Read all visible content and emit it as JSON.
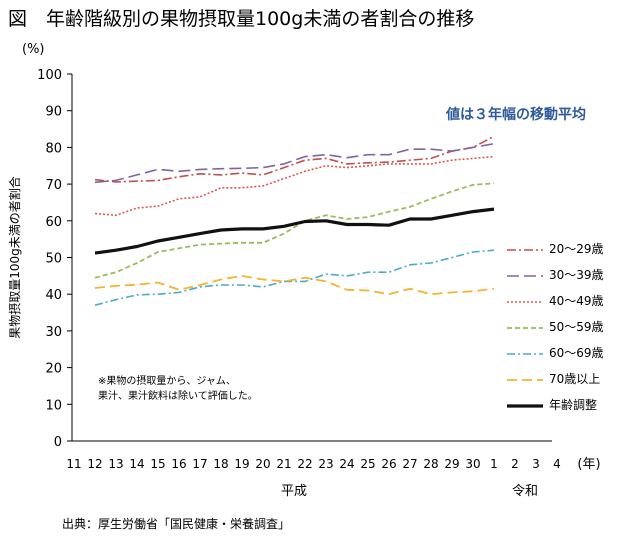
{
  "title": "図　年齢階級別の果物摂取量100g未満の者割合の推移",
  "unit_label": "(%)",
  "annotation": "値は３年幅の移動平均",
  "note_lines": [
    "※果物の摂取量から、ジャム、",
    "果汁、果汁飲料は除いて評価した。"
  ],
  "source": "出典：厚生労働省「国民健康・栄養調査」",
  "chart_data": {
    "type": "line",
    "ylabel": "果物摂取量100g未満の者割合",
    "xlabel": "(年)",
    "ylim": [
      0,
      100
    ],
    "yticks": [
      0,
      10,
      20,
      30,
      40,
      50,
      60,
      70,
      80,
      90,
      100
    ],
    "x_ticks": [
      "11",
      "12",
      "13",
      "14",
      "15",
      "16",
      "17",
      "18",
      "19",
      "20",
      "21",
      "22",
      "23",
      "24",
      "25",
      "26",
      "27",
      "28",
      "29",
      "30",
      "1",
      "2",
      "3",
      "4"
    ],
    "era_labels": [
      {
        "label": "平成",
        "under": "21"
      },
      {
        "label": "令和",
        "under": "2"
      }
    ],
    "x": [
      "12",
      "13",
      "14",
      "15",
      "16",
      "17",
      "18",
      "19",
      "20",
      "21",
      "22",
      "23",
      "24",
      "25",
      "26",
      "27",
      "28",
      "29",
      "30",
      "1"
    ],
    "series": [
      {
        "name": "20～29歳",
        "color": "#c0504d",
        "dash": "9,3,2,3",
        "width": 1.6,
        "values": [
          71.2,
          70.6,
          70.8,
          71.0,
          72.0,
          72.8,
          72.5,
          73.0,
          72.5,
          74.5,
          76.5,
          77.0,
          75.5,
          75.8,
          76.0,
          76.5,
          77.0,
          79.0,
          80.0,
          83.0
        ]
      },
      {
        "name": "30～39歳",
        "color": "#8064a2",
        "dash": "12,5",
        "width": 1.6,
        "values": [
          70.5,
          71.0,
          72.5,
          74.0,
          73.5,
          74.0,
          74.2,
          74.3,
          74.5,
          75.5,
          77.5,
          78.0,
          77.2,
          78.0,
          78.0,
          79.5,
          79.5,
          79.0,
          80.0,
          81.0
        ]
      },
      {
        "name": "40～49歳",
        "color": "#e0564e",
        "dash": "2,2",
        "width": 1.6,
        "values": [
          62.0,
          61.5,
          63.5,
          64.0,
          66.0,
          66.5,
          69.0,
          69.0,
          69.5,
          71.5,
          73.5,
          75.0,
          74.5,
          75.0,
          75.5,
          75.5,
          75.5,
          76.5,
          77.0,
          77.5
        ]
      },
      {
        "name": "50～59歳",
        "color": "#9bbb59",
        "dash": "5,3",
        "width": 1.8,
        "values": [
          44.5,
          46.0,
          48.5,
          51.5,
          52.5,
          53.5,
          53.8,
          54.0,
          54.0,
          56.5,
          60.0,
          61.5,
          60.5,
          61.0,
          62.5,
          63.8,
          66.0,
          68.0,
          69.8,
          70.2
        ]
      },
      {
        "name": "60～69歳",
        "color": "#4bacc6",
        "dash": "8,3,2,3",
        "width": 1.6,
        "values": [
          37.0,
          38.5,
          39.8,
          40.0,
          40.5,
          42.0,
          42.5,
          42.5,
          42.0,
          43.5,
          43.5,
          45.5,
          45.0,
          46.0,
          46.0,
          48.0,
          48.5,
          50.0,
          51.5,
          52.0
        ]
      },
      {
        "name": "70歳以上",
        "color": "#f4b330",
        "dash": "10,5",
        "width": 1.8,
        "values": [
          41.7,
          42.3,
          42.6,
          43.2,
          41.2,
          42.5,
          44.0,
          45.0,
          44.0,
          43.5,
          44.5,
          43.5,
          41.2,
          41.0,
          40.0,
          41.5,
          40.0,
          40.5,
          40.8,
          41.5
        ]
      },
      {
        "name": "年齢調整",
        "color": "#111111",
        "dash": "",
        "width": 3.2,
        "values": [
          51.2,
          52.0,
          53.0,
          54.5,
          55.5,
          56.5,
          57.5,
          57.8,
          57.8,
          58.5,
          59.8,
          60.0,
          59.0,
          59.0,
          58.8,
          60.5,
          60.5,
          61.5,
          62.5,
          63.2
        ]
      }
    ]
  }
}
